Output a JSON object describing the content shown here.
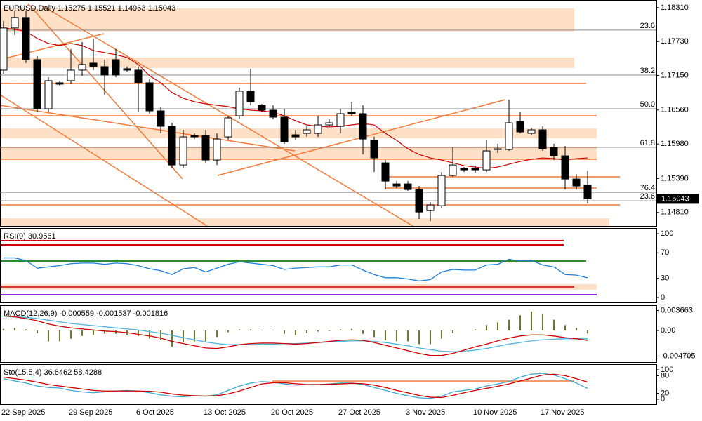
{
  "chart_data": [
    {
      "type": "candlestick",
      "title": "EURUSD,Daily  1.15275 1.15521 1.14963 1.15043",
      "categories": [
        "22 Sep 2025",
        null,
        null,
        null,
        null,
        null,
        "29 Sep 2025",
        null,
        null,
        null,
        null,
        null,
        "6 Oct 2025",
        null,
        null,
        null,
        null,
        null,
        "13 Oct 2025",
        null,
        null,
        null,
        null,
        null,
        "20 Oct 2025",
        null,
        null,
        null,
        null,
        null,
        "27 Oct 2025",
        null,
        null,
        null,
        null,
        null,
        "3 Nov 2025",
        null,
        null,
        null,
        null,
        null,
        "10 Nov 2025",
        null,
        null,
        null,
        null,
        null,
        "17 Nov 2025",
        null,
        null,
        null,
        null
      ],
      "open": [
        1.17242,
        1.17962,
        1.18142,
        1.17422,
        1.16582,
        1.17026,
        1.17062,
        1.17242,
        1.17362,
        1.17302,
        1.17422,
        1.17266,
        1.17242,
        1.17026,
        1.16546,
        1.16282,
        1.15622,
        1.16126,
        1.16126,
        1.15706,
        1.16102,
        1.16462,
        1.16882,
        1.16642,
        1.16558,
        1.16438,
        1.16138,
        1.16162,
        1.16162,
        1.16306,
        1.16282,
        1.16522,
        1.16498,
        1.16042,
        1.15658,
        1.15298,
        1.15298,
        1.15202,
        1.14842,
        1.14926,
        1.15442,
        1.15562,
        1.15562,
        1.15538,
        1.15886,
        1.15886,
        1.16366,
        1.16162,
        1.16222,
        1.15922,
        1.15778,
        1.15382,
        1.15275
      ],
      "high": [
        1.18082,
        1.18262,
        1.18262,
        1.17482,
        1.17122,
        1.17062,
        1.17602,
        1.17722,
        1.17782,
        1.17422,
        1.17602,
        1.17302,
        1.17302,
        1.17098,
        1.16618,
        1.16342,
        1.16222,
        1.16162,
        1.16222,
        1.16162,
        1.16462,
        1.16942,
        1.17266,
        1.16666,
        1.16642,
        1.16582,
        1.16222,
        1.16282,
        1.16462,
        1.16402,
        1.16582,
        1.16702,
        1.16642,
        1.16102,
        1.15706,
        1.15346,
        1.15346,
        1.15262,
        1.14986,
        1.15502,
        1.15922,
        1.15586,
        1.1561,
        1.16042,
        1.15982,
        1.16738,
        1.16522,
        1.16258,
        1.16282,
        1.15982,
        1.15946,
        1.15466,
        1.15521
      ],
      "low": [
        1.17182,
        1.17842,
        1.17362,
        1.16522,
        1.16522,
        1.16978,
        1.17002,
        1.17146,
        1.17242,
        1.16822,
        1.17122,
        1.17218,
        1.16522,
        1.16498,
        1.16162,
        1.15562,
        1.15562,
        1.16066,
        1.15658,
        1.15622,
        1.16042,
        1.16402,
        1.16642,
        1.16522,
        1.16402,
        1.15982,
        1.16042,
        1.16102,
        1.16102,
        1.16282,
        1.16162,
        1.16462,
        1.15802,
        1.15502,
        1.15202,
        1.15226,
        1.15178,
        1.14698,
        1.14662,
        1.1489,
        1.15418,
        1.15502,
        1.1549,
        1.15502,
        1.15826,
        1.15862,
        1.16162,
        1.16138,
        1.15862,
        1.15706,
        1.15202,
        1.15202,
        1.14963
      ],
      "close": [
        1.17962,
        1.18142,
        1.17422,
        1.16582,
        1.17062,
        1.17002,
        1.17242,
        1.17338,
        1.17302,
        1.17158,
        1.17158,
        1.17242,
        1.17026,
        1.16546,
        1.16282,
        1.15622,
        1.16102,
        1.16102,
        1.15706,
        1.16066,
        1.16426,
        1.16882,
        1.16702,
        1.16558,
        1.16438,
        1.16018,
        1.16102,
        1.16222,
        1.16306,
        1.16342,
        1.16498,
        1.16498,
        1.16066,
        1.15742,
        1.15346,
        1.15262,
        1.15202,
        1.14818,
        1.14938,
        1.15442,
        1.15622,
        1.15538,
        1.15538,
        1.15862,
        1.15898,
        1.16342,
        1.16186,
        1.16222,
        1.15898,
        1.15778,
        1.15382,
        1.15262,
        1.15043
      ],
      "ma_values": [
        1.17962,
        1.17938,
        1.17902,
        1.17782,
        1.17698,
        1.17662,
        1.17698,
        1.17662,
        1.17578,
        1.17542,
        1.17506,
        1.17458,
        1.17338,
        1.17146,
        1.17026,
        1.16858,
        1.16762,
        1.16702,
        1.16666,
        1.16642,
        1.16618,
        1.16582,
        1.16558,
        1.16546,
        1.16522,
        1.16462,
        1.16378,
        1.16306,
        1.16282,
        1.1627,
        1.16282,
        1.16306,
        1.1633,
        1.16306,
        1.16162,
        1.16042,
        1.15898,
        1.15802,
        1.15742,
        1.15706,
        1.15658,
        1.1561,
        1.15586,
        1.15562,
        1.15586,
        1.15634,
        1.15682,
        1.15718,
        1.15742,
        1.1573,
        1.15706,
        1.1573,
        1.15742
      ],
      "ma_color": "#cc0000",
      "up_color": "#ffffff",
      "down_color": "#000000",
      "ylim": [
        1.1458,
        1.1844
      ],
      "yticks": [
        {
          "value": 1.1831,
          "label": "1.18310"
        },
        {
          "value": 1.1773,
          "label": "1.17730"
        },
        {
          "value": 1.1715,
          "label": "1.17150"
        },
        {
          "value": 1.1656,
          "label": "1.16560"
        },
        {
          "value": 1.1598,
          "label": "1.15980"
        },
        {
          "value": 1.1539,
          "label": "1.15390"
        },
        {
          "value": 1.1481,
          "label": "1.14810"
        }
      ],
      "levels": [
        {
          "value": 1.17926,
          "label": "23.6"
        },
        {
          "value": 1.17158,
          "label": "38.2"
        },
        {
          "value": 1.16582,
          "label": "50.0"
        },
        {
          "value": 1.15922,
          "label": "61.8"
        },
        {
          "value": 1.15154,
          "label": "76.4"
        },
        {
          "value": 1.1501,
          "label": "23.6"
        }
      ]
    },
    {
      "type": "line",
      "title": "RSI(9) 30.9561",
      "series": [
        {
          "color": "#1e7fd8",
          "values": [
            62,
            62,
            58,
            46,
            48,
            50,
            53,
            54,
            54,
            52,
            54,
            53,
            50,
            45,
            42,
            36,
            45,
            47,
            40,
            46,
            52,
            56,
            54,
            52,
            50,
            44,
            46,
            47,
            48,
            48,
            51,
            51,
            43,
            36,
            31,
            31,
            29,
            26,
            28,
            40,
            44,
            43,
            43,
            51,
            52,
            60,
            57,
            58,
            51,
            48,
            36,
            35,
            30.9561
          ]
        }
      ],
      "ylim": [
        -7.7,
        108.8
      ],
      "yticks": [
        100,
        70,
        30,
        0
      ]
    },
    {
      "type": "combo",
      "title": "MACD(12,26,9) -0.000559 -0.001537 -0.001816",
      "series": [
        {
          "type": "bar",
          "color": "#6b7a2a",
          "values": [
            0.0003,
            0.0005,
            0.0002,
            -0.0005,
            -0.002,
            -0.002,
            -0.0015,
            -0.001,
            -0.0008,
            -0.0006,
            -0.0006,
            -0.0008,
            -0.001,
            -0.0015,
            -0.0018,
            -0.003,
            -0.0022,
            -0.002,
            -0.002,
            -0.0012,
            -0.0003,
            0.0002,
            0.0002,
            0.0001,
            0.0001,
            -0.0006,
            -0.0008,
            -0.0005,
            -0.0002,
            -0.0001,
            0.0002,
            0.0003,
            -0.0006,
            -0.0012,
            -0.0018,
            -0.002,
            -0.002,
            -0.0025,
            -0.0025,
            -0.0015,
            -0.0005,
            0,
            0.0002,
            0.001,
            0.0015,
            0.002,
            0.0028,
            0.0035,
            0.003,
            0.002,
            0.001,
            0.0005,
            -0.000559
          ]
        },
        {
          "type": "line",
          "color": "#4fb3da",
          "values": [
            0.0026,
            0.0025,
            0.0024,
            0.0022,
            0.0019,
            0.0016,
            0.0013,
            0.0011,
            0.0009,
            0.0007,
            0.0005,
            0.0003,
            0.0001,
            -0.0002,
            -0.0005,
            -0.0009,
            -0.0013,
            -0.0017,
            -0.0021,
            -0.0024,
            -0.0026,
            -0.0026,
            -0.0026,
            -0.0025,
            -0.0025,
            -0.0024,
            -0.0024,
            -0.0023,
            -0.0022,
            -0.0021,
            -0.002,
            -0.0019,
            -0.0019,
            -0.002,
            -0.0022,
            -0.0025,
            -0.0028,
            -0.0032,
            -0.0035,
            -0.0038,
            -0.0039,
            -0.0038,
            -0.0036,
            -0.0033,
            -0.0029,
            -0.0025,
            -0.0022,
            -0.0019,
            -0.0017,
            -0.0016,
            -0.0015,
            -0.0015,
            -0.001537
          ]
        },
        {
          "type": "line",
          "color": "#cc0000",
          "values": [
            0.0027,
            0.0025,
            0.0022,
            0.0018,
            0.0012,
            0.0008,
            0.0005,
            0.0003,
            0.0001,
            -0.0001,
            -0.0002,
            -0.0004,
            -0.0007,
            -0.001,
            -0.0014,
            -0.002,
            -0.0024,
            -0.0028,
            -0.0032,
            -0.0033,
            -0.003,
            -0.0026,
            -0.0024,
            -0.0023,
            -0.0023,
            -0.0024,
            -0.0025,
            -0.0024,
            -0.0022,
            -0.002,
            -0.0018,
            -0.0017,
            -0.0018,
            -0.0022,
            -0.0027,
            -0.0032,
            -0.0037,
            -0.0042,
            -0.0046,
            -0.0046,
            -0.0042,
            -0.0036,
            -0.003,
            -0.0025,
            -0.0019,
            -0.0014,
            -0.001,
            -0.0008,
            -0.0008,
            -0.001,
            -0.0013,
            -0.0015,
            -0.001816
          ]
        }
      ],
      "ylim": [
        -0.0058,
        0.00465
      ],
      "yticks": [
        0.003663,
        {
          "value": 0,
          "label": "0.00"
        },
        -0.004705
      ]
    },
    {
      "type": "line",
      "title": "Sto(15,5,4) 36.6462 58.4288",
      "series": [
        {
          "color": "#3fa9d0",
          "values": [
            70,
            62,
            55,
            45,
            40,
            38,
            30,
            25,
            22,
            25,
            28,
            30,
            28,
            22,
            15,
            10,
            8,
            12,
            10,
            15,
            30,
            45,
            55,
            60,
            58,
            52,
            48,
            50,
            50,
            52,
            55,
            55,
            50,
            40,
            30,
            20,
            12,
            5,
            3,
            10,
            25,
            30,
            35,
            45,
            52,
            60,
            75,
            85,
            88,
            82,
            70,
            55,
            36.6462
          ]
        },
        {
          "color": "#cc0000",
          "values": [
            75,
            70,
            65,
            58,
            50,
            45,
            40,
            35,
            30,
            28,
            28,
            28,
            28,
            27,
            24,
            18,
            14,
            12,
            11,
            12,
            18,
            28,
            40,
            52,
            56,
            56,
            53,
            50,
            50,
            51,
            52,
            54,
            53,
            48,
            40,
            30,
            22,
            13,
            7,
            6,
            13,
            22,
            30,
            37,
            44,
            52,
            62,
            72,
            82,
            85,
            80,
            70,
            58.4288
          ]
        }
      ],
      "ylim": [
        -16.7,
        119
      ],
      "yticks": [
        100,
        80,
        20,
        0
      ]
    }
  ]
}
